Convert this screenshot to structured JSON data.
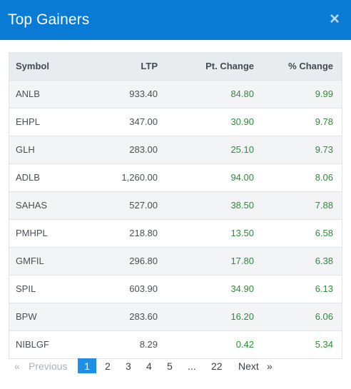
{
  "header": {
    "title": "Top Gainers",
    "close_glyph": "×"
  },
  "table": {
    "headers": {
      "symbol": "Symbol",
      "ltp": "LTP",
      "pt_change": "Pt. Change",
      "pct_change": "% Change"
    },
    "rows": [
      {
        "symbol": "ANLB",
        "ltp": "933.40",
        "pt_change": "84.80",
        "pct_change": "9.99"
      },
      {
        "symbol": "EHPL",
        "ltp": "347.00",
        "pt_change": "30.90",
        "pct_change": "9.78"
      },
      {
        "symbol": "GLH",
        "ltp": "283.00",
        "pt_change": "25.10",
        "pct_change": "9.73"
      },
      {
        "symbol": "ADLB",
        "ltp": "1,260.00",
        "pt_change": "94.00",
        "pct_change": "8.06"
      },
      {
        "symbol": "SAHAS",
        "ltp": "527.00",
        "pt_change": "38.50",
        "pct_change": "7.88"
      },
      {
        "symbol": "PMHPL",
        "ltp": "218.80",
        "pt_change": "13.50",
        "pct_change": "6.58"
      },
      {
        "symbol": "GMFIL",
        "ltp": "296.80",
        "pt_change": "17.80",
        "pct_change": "6.38"
      },
      {
        "symbol": "SPIL",
        "ltp": "603.90",
        "pt_change": "34.90",
        "pct_change": "6.13"
      },
      {
        "symbol": "BPW",
        "ltp": "283.60",
        "pt_change": "16.20",
        "pct_change": "6.06"
      },
      {
        "symbol": "NIBLGF",
        "ltp": "8.29",
        "pt_change": "0.42",
        "pct_change": "5.34"
      }
    ]
  },
  "pagination": {
    "prev_arrow": "«",
    "previous": "Previous",
    "pages": [
      "1",
      "2",
      "3",
      "4",
      "5"
    ],
    "ellipsis": "...",
    "last_page": "22",
    "next": "Next",
    "next_arrow": "»",
    "current": "1"
  },
  "colors": {
    "header_bg": "#0a7bd5",
    "positive": "#2e8b3a",
    "active_page": "#1f8ee6"
  }
}
